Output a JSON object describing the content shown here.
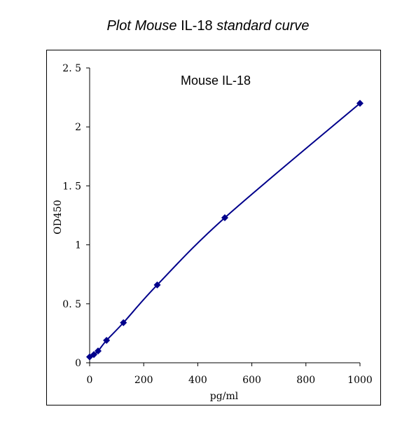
{
  "page": {
    "title_italic_1": "Plot Mouse",
    "title_plain": "IL-18",
    "title_italic_2": "standard curve"
  },
  "chart_data": {
    "type": "line",
    "title": "Mouse IL-18",
    "xlabel": "pg/ml",
    "ylabel": "OD450",
    "xlim": [
      0,
      1000
    ],
    "ylim": [
      0,
      2.5
    ],
    "x_ticks": [
      0,
      200,
      400,
      600,
      800,
      1000
    ],
    "x_tick_labels": [
      "0",
      "200",
      "400",
      "600",
      "800",
      "1000"
    ],
    "y_ticks": [
      0,
      0.5,
      1,
      1.5,
      2,
      2.5
    ],
    "y_tick_labels": [
      "0",
      "0. 5",
      "1",
      "1. 5",
      "2",
      "2. 5"
    ],
    "grid": false,
    "marker": "diamond",
    "series_color": "#00008B",
    "series": [
      {
        "x": [
          0,
          15.6,
          31.2,
          62.5,
          125,
          250,
          500,
          1000
        ],
        "values": [
          0.05,
          0.07,
          0.1,
          0.19,
          0.34,
          0.66,
          1.23,
          2.2
        ]
      }
    ]
  }
}
